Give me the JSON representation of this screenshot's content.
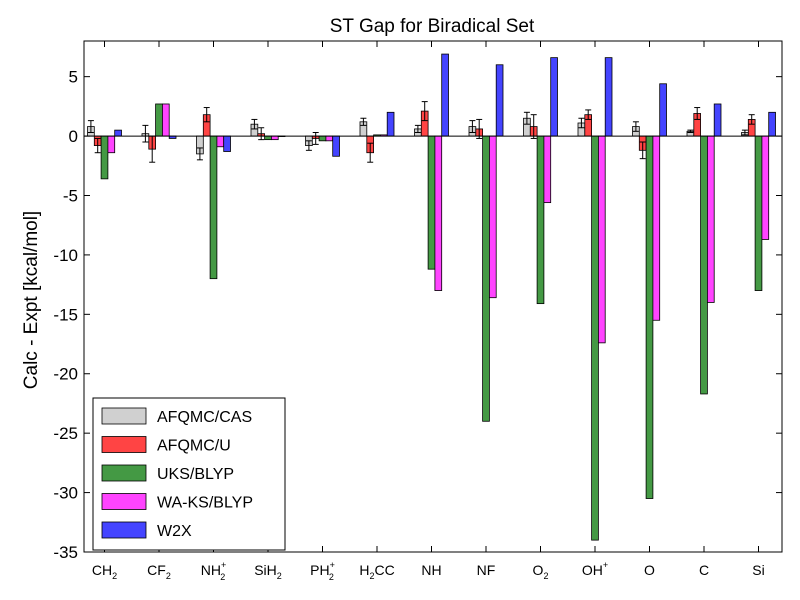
{
  "chart_data": {
    "type": "bar",
    "title": "ST Gap for Biradical Set",
    "xlabel": "",
    "ylabel": "Calc - Expt [kcal/mol]",
    "ylim": [
      -35,
      8
    ],
    "yticks": [
      5,
      0,
      -5,
      -10,
      -15,
      -20,
      -25,
      -30,
      -35
    ],
    "ytick_labels": [
      "5",
      "0",
      "-5",
      "-10",
      "-15",
      "-20",
      "-25",
      "-30",
      "-35"
    ],
    "categories": [
      {
        "base": "CH",
        "sub": "2",
        "sup": ""
      },
      {
        "base": "CF",
        "sub": "2",
        "sup": ""
      },
      {
        "base": "NH",
        "sub": "2",
        "sup": "+"
      },
      {
        "base": "SiH",
        "sub": "2",
        "sup": ""
      },
      {
        "base": "PH",
        "sub": "2",
        "sup": "+"
      },
      {
        "base": "H",
        "sub": "2",
        "sup": "",
        "tail": "CC"
      },
      {
        "base": "NH",
        "sub": "",
        "sup": ""
      },
      {
        "base": "NF",
        "sub": "",
        "sup": ""
      },
      {
        "base": "O",
        "sub": "2",
        "sup": ""
      },
      {
        "base": "OH",
        "sub": "",
        "sup": "+"
      },
      {
        "base": "O",
        "sub": "",
        "sup": ""
      },
      {
        "base": "C",
        "sub": "",
        "sup": ""
      },
      {
        "base": "Si",
        "sub": "",
        "sup": ""
      }
    ],
    "series": [
      {
        "name": "AFQMC/CAS",
        "color": "#d0d0d0",
        "values": [
          0.8,
          0.2,
          -1.5,
          1.0,
          -0.8,
          1.2,
          0.6,
          0.8,
          1.5,
          1.1,
          0.8,
          0.4,
          0.3
        ],
        "errors": [
          0.5,
          0.7,
          0.5,
          0.4,
          0.4,
          0.3,
          0.3,
          0.5,
          0.5,
          0.4,
          0.4,
          0.1,
          0.2
        ]
      },
      {
        "name": "AFQMC/U",
        "color": "#ff4444",
        "values": [
          -0.8,
          -1.1,
          1.8,
          0.2,
          -0.2,
          -1.4,
          2.1,
          0.6,
          0.8,
          1.8,
          -1.2,
          1.9,
          1.4
        ],
        "errors": [
          0.6,
          1.1,
          0.6,
          0.5,
          0.5,
          0.8,
          0.8,
          0.8,
          1.0,
          0.4,
          0.7,
          0.5,
          0.4
        ]
      },
      {
        "name": "UKS/BLYP",
        "color": "#449944",
        "values": [
          -3.6,
          2.7,
          -12.0,
          -0.3,
          -0.4,
          0.1,
          -11.2,
          -24.0,
          -14.1,
          -34.0,
          -30.5,
          -21.7,
          -13.0
        ],
        "errors": []
      },
      {
        "name": "WA-KS/BLYP",
        "color": "#ff44ff",
        "values": [
          -1.4,
          2.7,
          -0.9,
          -0.3,
          -0.4,
          0.1,
          -13.0,
          -13.6,
          -5.6,
          -17.4,
          -15.5,
          -14.0,
          -8.7
        ],
        "errors": []
      },
      {
        "name": "W2X",
        "color": "#4444ff",
        "values": [
          0.5,
          -0.2,
          -1.3,
          0.0,
          -1.7,
          2.0,
          6.9,
          6.0,
          6.6,
          6.6,
          4.4,
          2.7,
          2.0
        ],
        "errors": []
      }
    ],
    "legend": "lower-left"
  }
}
